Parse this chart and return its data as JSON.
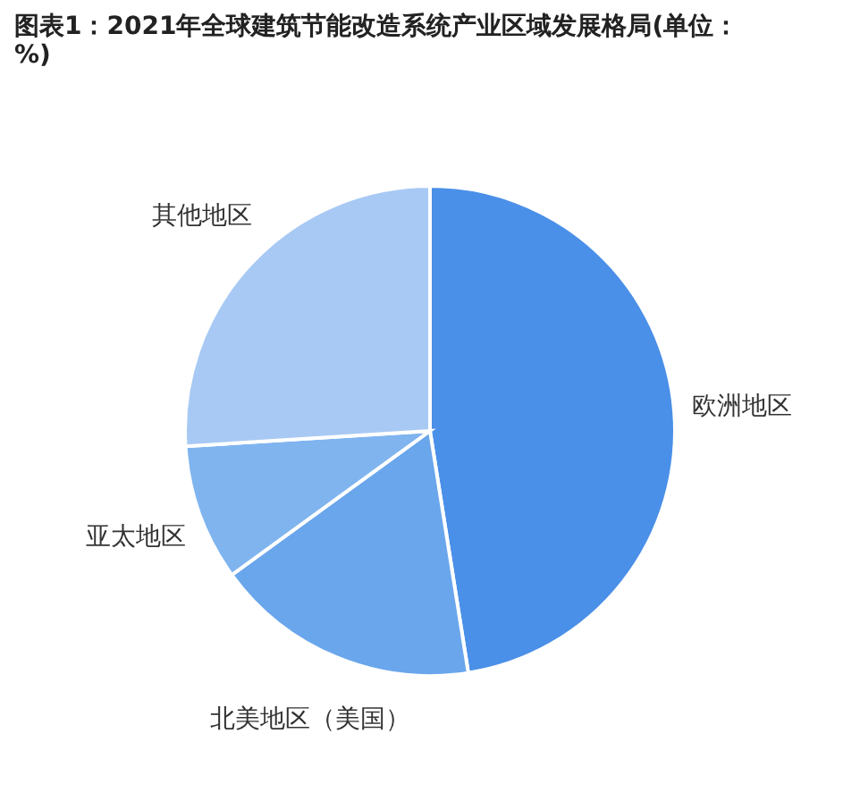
{
  "chart_data": {
    "type": "pie",
    "title": "图表1：2021年全球建筑节能改造系统产业区域发展格局(单位：%)",
    "categories": [
      "欧洲地区",
      "北美地区（美国）",
      "亚太地区",
      "其他地区"
    ],
    "values": [
      47.5,
      17.5,
      9,
      26
    ],
    "colors": [
      "#4a8fe8",
      "#6aa6ec",
      "#7fb4ef",
      "#a8c9f4"
    ],
    "legend": false
  }
}
